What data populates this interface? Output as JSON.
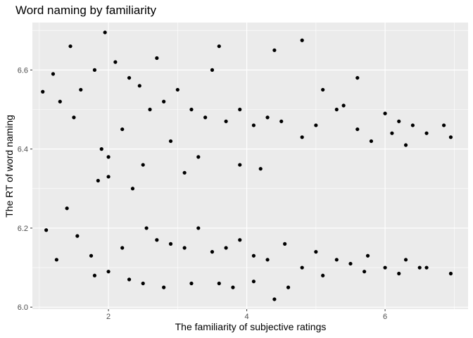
{
  "chart_data": {
    "type": "scatter",
    "title": "Word naming by familiarity",
    "xlabel": "The familiarity of subjective ratings",
    "ylabel": "The RT of word naming",
    "xlim": [
      0.9,
      7.2
    ],
    "ylim": [
      5.995,
      6.72
    ],
    "x_ticks": [
      2,
      4,
      6
    ],
    "x_tick_labels": [
      "2",
      "4",
      "6"
    ],
    "y_ticks": [
      6.0,
      6.2,
      6.4,
      6.6
    ],
    "y_tick_labels": [
      "6.0",
      "6.2",
      "6.4",
      "6.6"
    ],
    "grid": true,
    "legend": "none",
    "point_color": "#000000",
    "panel_color": "#ebebeb",
    "series": [
      {
        "x": [
          1.05,
          1.2,
          1.3,
          1.45,
          1.6,
          1.8,
          1.95,
          2.1,
          2.3,
          2.45,
          2.6,
          2.8,
          3.0,
          3.2,
          3.4,
          3.5,
          3.7,
          3.9,
          4.1,
          4.3,
          4.5,
          4.8,
          5.0,
          5.3,
          5.6,
          5.8,
          6.1,
          6.3,
          6.6,
          6.85,
          6.95,
          1.9,
          2.0,
          2.5,
          2.9,
          3.1,
          3.3,
          4.8,
          5.6,
          6.4,
          4.2,
          3.9,
          2.7,
          3.6,
          4.4,
          5.1,
          5.4,
          6.0,
          6.2,
          1.5,
          2.2
        ],
        "y": [
          6.545,
          6.59,
          6.52,
          6.66,
          6.55,
          6.6,
          6.695,
          6.62,
          6.58,
          6.56,
          6.5,
          6.52,
          6.55,
          6.5,
          6.48,
          6.6,
          6.47,
          6.5,
          6.46,
          6.48,
          6.47,
          6.43,
          6.46,
          6.5,
          6.45,
          6.42,
          6.44,
          6.41,
          6.44,
          6.46,
          6.43,
          6.4,
          6.38,
          6.36,
          6.42,
          6.34,
          6.38,
          6.675,
          6.58,
          6.46,
          6.35,
          6.36,
          6.63,
          6.66,
          6.65,
          6.55,
          6.51,
          6.49,
          6.47,
          6.48,
          6.45
        ]
      },
      {
        "x": [
          1.1,
          1.25,
          1.4,
          1.55,
          1.75,
          1.85,
          2.0,
          2.2,
          2.35,
          2.55,
          2.7,
          2.9,
          3.1,
          3.3,
          3.5,
          3.7,
          3.9,
          4.1,
          4.3,
          4.55,
          4.8,
          5.0,
          5.3,
          5.5,
          5.75,
          6.0,
          6.3,
          6.6,
          6.95,
          1.8,
          2.0,
          2.3,
          2.5,
          3.6,
          4.1,
          4.6,
          5.1,
          5.7,
          6.2,
          6.5,
          2.8,
          3.2,
          3.8,
          4.4
        ],
        "y": [
          6.195,
          6.12,
          6.25,
          6.18,
          6.13,
          6.32,
          6.33,
          6.15,
          6.3,
          6.2,
          6.17,
          6.16,
          6.15,
          6.2,
          6.14,
          6.15,
          6.17,
          6.13,
          6.12,
          6.16,
          6.1,
          6.14,
          6.12,
          6.11,
          6.13,
          6.1,
          6.12,
          6.1,
          6.085,
          6.08,
          6.09,
          6.07,
          6.06,
          6.06,
          6.065,
          6.05,
          6.08,
          6.09,
          6.085,
          6.1,
          6.05,
          6.06,
          6.05,
          6.02
        ]
      }
    ]
  }
}
